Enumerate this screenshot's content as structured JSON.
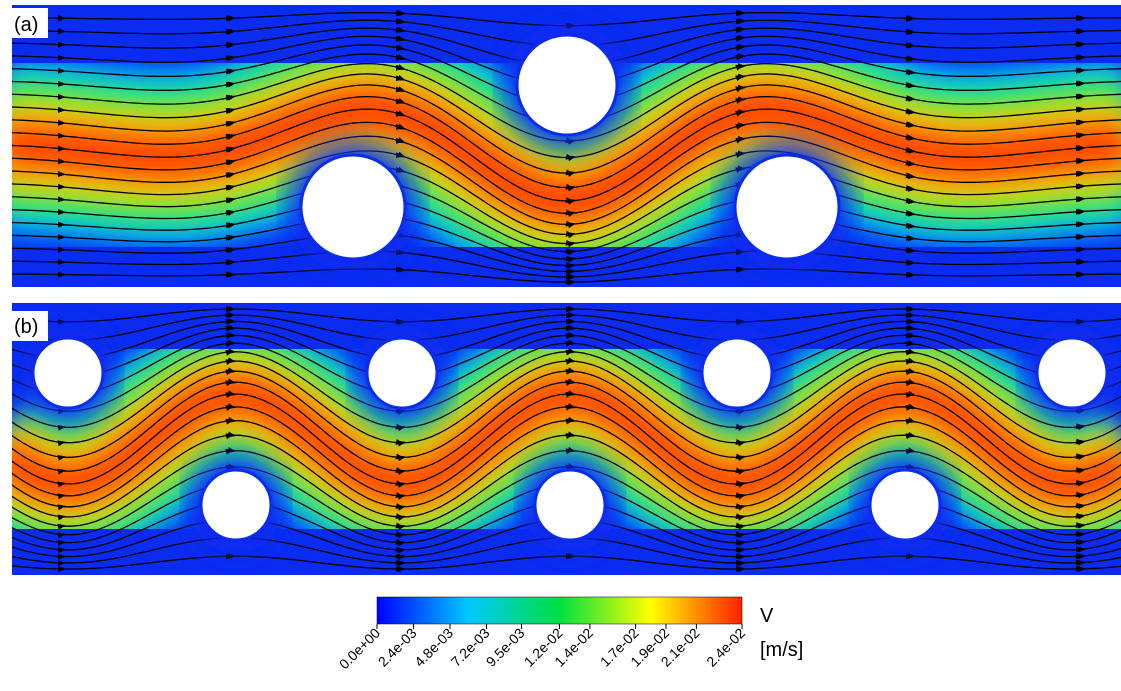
{
  "panels": [
    {
      "label": "(a)"
    },
    {
      "label": "(b)"
    }
  ],
  "colorbar": {
    "title": "V",
    "unit": "[m/s]",
    "range": [
      0,
      0.024
    ],
    "ticks": [
      {
        "value": 0,
        "label": "0.0e+00"
      },
      {
        "value": 0.0024,
        "label": "2.4e-03"
      },
      {
        "value": 0.0048,
        "label": "4.8e-03"
      },
      {
        "value": 0.0072,
        "label": "7.2e-03"
      },
      {
        "value": 0.0095,
        "label": "9.5e-03"
      },
      {
        "value": 0.012,
        "label": "1.2e-02"
      },
      {
        "value": 0.014,
        "label": "1.4e-02"
      },
      {
        "value": 0.017,
        "label": "1.7e-02"
      },
      {
        "value": 0.019,
        "label": "1.9e-02"
      },
      {
        "value": 0.021,
        "label": "2.1e-02"
      },
      {
        "value": 0.024,
        "label": "2.4e-02"
      }
    ]
  }
}
